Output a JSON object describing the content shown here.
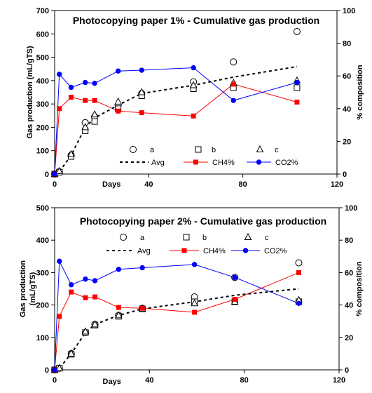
{
  "chart_data": [
    {
      "type": "scatter",
      "title": "Photocopying paper 1%  - Cumulative gas production",
      "xlabel": "Days",
      "ylabel": "Gas production (mL/gTS)",
      "y2label": "% composition",
      "xlim": [
        0,
        120
      ],
      "ylim": [
        0,
        700
      ],
      "y2lim": [
        0,
        100
      ],
      "xticks": [
        0,
        40,
        80,
        120
      ],
      "yticks": [
        0,
        100,
        200,
        300,
        400,
        500,
        600,
        700
      ],
      "y2ticks": [
        0,
        20,
        40,
        60,
        80,
        100
      ],
      "legend": "inside, below title",
      "series": [
        {
          "name": "a",
          "marker": "circle",
          "axis": "left",
          "x": [
            0,
            2,
            7,
            13,
            17,
            27,
            37,
            59,
            76,
            103
          ],
          "y": [
            0,
            10,
            80,
            220,
            245,
            295,
            345,
            395,
            480,
            610
          ]
        },
        {
          "name": "b",
          "marker": "square",
          "axis": "left",
          "x": [
            0,
            2,
            7,
            13,
            17,
            27,
            37,
            59,
            76,
            103
          ],
          "y": [
            0,
            8,
            75,
            185,
            225,
            280,
            335,
            365,
            370,
            370
          ]
        },
        {
          "name": "c",
          "marker": "triangle",
          "axis": "left",
          "x": [
            0,
            2,
            7,
            13,
            17,
            27,
            37,
            59,
            76,
            103
          ],
          "y": [
            0,
            12,
            85,
            200,
            255,
            310,
            350,
            380,
            390,
            400
          ]
        },
        {
          "name": "Avg",
          "line": "dashed",
          "axis": "left",
          "x": [
            0,
            2,
            7,
            13,
            17,
            27,
            37,
            59,
            76,
            103
          ],
          "y": [
            0,
            10,
            80,
            200,
            240,
            295,
            345,
            380,
            415,
            460
          ]
        },
        {
          "name": "CH4%",
          "line": "solid",
          "marker": "filled-square",
          "color": "#ff0000",
          "axis": "right",
          "x": [
            0,
            2,
            7,
            13,
            17,
            27,
            37,
            59,
            76,
            103
          ],
          "y": [
            0,
            40,
            47,
            45,
            45,
            38.5,
            37.5,
            35.5,
            55,
            44
          ]
        },
        {
          "name": "CO2%",
          "line": "solid",
          "marker": "filled-circle",
          "color": "#0000ff",
          "axis": "right",
          "x": [
            0,
            2,
            7,
            13,
            17,
            27,
            37,
            59,
            76,
            103
          ],
          "y": [
            0,
            61,
            53,
            56,
            55.5,
            63,
            63.5,
            65,
            45,
            56
          ]
        }
      ]
    },
    {
      "type": "scatter",
      "title": "Photocopying paper 2%  - Cumulative gas production",
      "xlabel": "Days",
      "ylabel": "Gas production (mL/gTS)",
      "y2label": "% composition",
      "xlim": [
        0,
        120
      ],
      "ylim": [
        0,
        500
      ],
      "y2lim": [
        0,
        100
      ],
      "xticks": [
        0,
        40,
        80,
        120
      ],
      "yticks": [
        0,
        100,
        200,
        300,
        400,
        500
      ],
      "y2ticks": [
        0,
        20,
        40,
        60,
        80,
        100
      ],
      "legend": "inside, below title",
      "series": [
        {
          "name": "a",
          "marker": "circle",
          "axis": "left",
          "x": [
            0,
            2,
            7,
            13,
            17,
            27,
            37,
            59,
            76,
            103
          ],
          "y": [
            0,
            5,
            50,
            115,
            140,
            168,
            190,
            225,
            285,
            330
          ]
        },
        {
          "name": "b",
          "marker": "square",
          "axis": "left",
          "x": [
            0,
            2,
            7,
            13,
            17,
            27,
            37,
            59,
            76,
            103
          ],
          "y": [
            0,
            5,
            48,
            115,
            138,
            165,
            188,
            210,
            210,
            210
          ]
        },
        {
          "name": "c",
          "marker": "triangle",
          "axis": "left",
          "x": [
            0,
            2,
            7,
            13,
            17,
            27,
            37,
            59,
            76,
            103
          ],
          "y": [
            0,
            5,
            50,
            118,
            140,
            168,
            188,
            205,
            210,
            215
          ]
        },
        {
          "name": "Avg",
          "line": "dashed",
          "axis": "left",
          "x": [
            0,
            2,
            7,
            13,
            17,
            27,
            37,
            59,
            76,
            103
          ],
          "y": [
            0,
            5,
            50,
            115,
            140,
            168,
            188,
            210,
            230,
            250
          ]
        },
        {
          "name": "CH4%",
          "line": "solid",
          "marker": "filled-square",
          "color": "#ff0000",
          "axis": "right",
          "x": [
            0,
            2,
            7,
            13,
            17,
            27,
            37,
            59,
            76,
            103
          ],
          "y": [
            0,
            33,
            48,
            44.5,
            45,
            38.5,
            38,
            35.5,
            43.5,
            60
          ]
        },
        {
          "name": "CO2%",
          "line": "solid",
          "marker": "filled-circle",
          "color": "#0000ff",
          "axis": "right",
          "x": [
            0,
            2,
            7,
            13,
            17,
            27,
            37,
            59,
            76,
            103
          ],
          "y": [
            0,
            67,
            52.5,
            56,
            55,
            62,
            63,
            65,
            57,
            41
          ]
        }
      ]
    }
  ]
}
